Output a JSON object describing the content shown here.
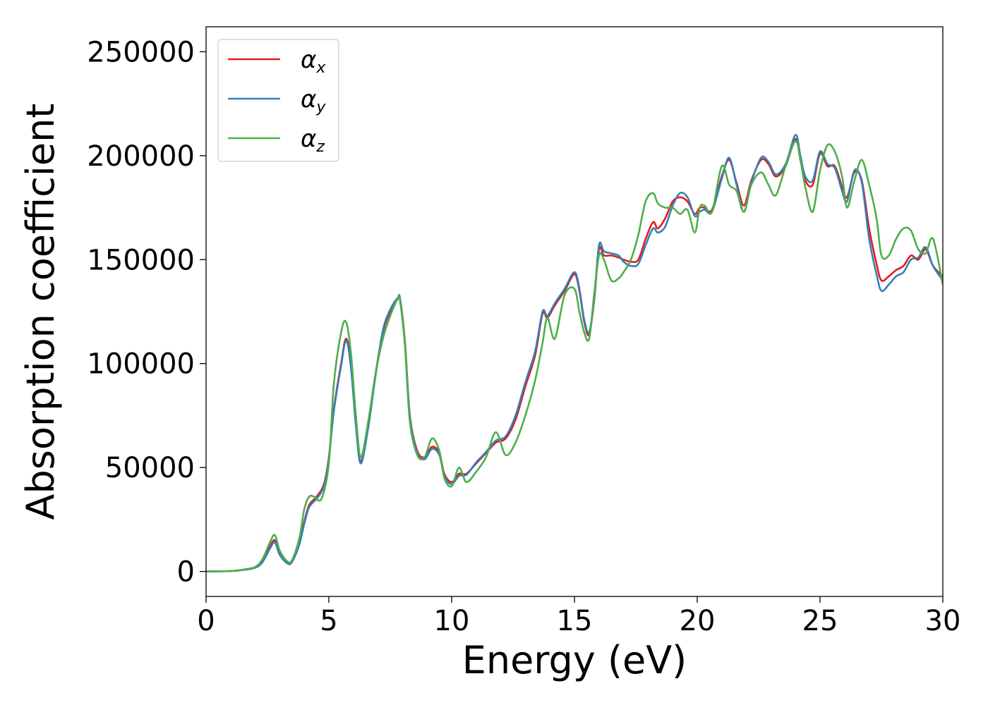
{
  "chart_data": {
    "type": "line",
    "xlabel": "Energy (eV)",
    "ylabel": "Absorption coefficient",
    "xlim": [
      0,
      30
    ],
    "ylim": [
      -12000,
      262000
    ],
    "xticks": [
      0,
      5,
      10,
      15,
      20,
      25,
      30
    ],
    "xtick_labels": [
      "0",
      "5",
      "10",
      "15",
      "20",
      "25",
      "30"
    ],
    "yticks": [
      0,
      50000,
      100000,
      150000,
      200000,
      250000
    ],
    "ytick_labels": [
      "0",
      "50000",
      "100000",
      "150000",
      "200000",
      "250000"
    ],
    "grid": false,
    "legend_position": "top-left",
    "series": [
      {
        "name": "αx",
        "name_base": "α",
        "name_sub": "x",
        "color": "#e41a1c",
        "x": [
          0,
          1,
          1.5,
          2,
          2.3,
          2.6,
          2.8,
          3.0,
          3.3,
          3.5,
          3.8,
          4.0,
          4.2,
          4.5,
          4.8,
          5.0,
          5.2,
          5.5,
          5.7,
          5.9,
          6.1,
          6.3,
          6.6,
          6.9,
          7.2,
          7.5,
          7.8,
          7.9,
          8.1,
          8.3,
          8.6,
          8.9,
          9.2,
          9.5,
          9.7,
          10.0,
          10.3,
          10.6,
          11.0,
          11.4,
          11.8,
          12.2,
          12.6,
          13.0,
          13.4,
          13.7,
          13.9,
          14.2,
          14.6,
          15.0,
          15.2,
          15.4,
          15.6,
          15.8,
          16.0,
          16.2,
          16.5,
          16.8,
          17.0,
          17.3,
          17.6,
          17.9,
          18.2,
          18.4,
          18.7,
          19.0,
          19.3,
          19.6,
          19.9,
          20.1,
          20.3,
          20.6,
          21.0,
          21.3,
          21.6,
          21.9,
          22.2,
          22.6,
          22.9,
          23.2,
          23.6,
          24.0,
          24.2,
          24.4,
          24.7,
          25.0,
          25.3,
          25.6,
          25.9,
          26.1,
          26.4,
          26.7,
          27.0,
          27.3,
          27.5,
          27.8,
          28.1,
          28.4,
          28.7,
          29.0,
          29.3,
          29.6,
          30.0
        ],
        "values": [
          0,
          200,
          800,
          2000,
          5000,
          12000,
          15000,
          9000,
          4500,
          5000,
          14000,
          24000,
          32000,
          36000,
          42000,
          55000,
          78000,
          100000,
          112000,
          100000,
          72000,
          53000,
          70000,
          95000,
          115000,
          125000,
          131000,
          131000,
          110000,
          75000,
          58000,
          55000,
          60000,
          57000,
          47000,
          43000,
          47000,
          47000,
          52000,
          57000,
          62000,
          64000,
          73000,
          89000,
          104000,
          124000,
          122000,
          128000,
          135000,
          143000,
          135000,
          120000,
          114000,
          130000,
          155000,
          152000,
          152000,
          151000,
          150000,
          149000,
          150000,
          160000,
          168000,
          165000,
          170000,
          178000,
          180000,
          178000,
          172000,
          175000,
          175000,
          174000,
          190000,
          198000,
          187000,
          176000,
          188000,
          198000,
          196000,
          190000,
          195000,
          208000,
          198000,
          188000,
          186000,
          201000,
          195000,
          195000,
          185000,
          180000,
          192000,
          188000,
          165000,
          148000,
          140000,
          142000,
          145000,
          147000,
          152000,
          150000,
          155000,
          147000,
          142000
        ]
      },
      {
        "name": "αy",
        "name_base": "α",
        "name_sub": "y",
        "color": "#377eb8",
        "x": [
          0,
          1,
          1.5,
          2,
          2.3,
          2.6,
          2.8,
          3.0,
          3.3,
          3.5,
          3.8,
          4.0,
          4.2,
          4.5,
          4.8,
          5.0,
          5.2,
          5.5,
          5.7,
          5.9,
          6.1,
          6.3,
          6.6,
          6.9,
          7.2,
          7.5,
          7.8,
          7.9,
          8.1,
          8.3,
          8.6,
          8.9,
          9.2,
          9.5,
          9.7,
          10.0,
          10.3,
          10.6,
          11.0,
          11.4,
          11.8,
          12.2,
          12.6,
          13.0,
          13.4,
          13.7,
          13.9,
          14.2,
          14.6,
          15.0,
          15.2,
          15.4,
          15.6,
          15.8,
          16.0,
          16.2,
          16.5,
          16.8,
          17.0,
          17.3,
          17.6,
          17.9,
          18.2,
          18.4,
          18.7,
          19.0,
          19.3,
          19.6,
          19.9,
          20.1,
          20.3,
          20.6,
          21.0,
          21.3,
          21.6,
          21.9,
          22.2,
          22.6,
          22.9,
          23.2,
          23.6,
          24.0,
          24.2,
          24.4,
          24.7,
          25.0,
          25.3,
          25.6,
          25.9,
          26.1,
          26.4,
          26.7,
          27.0,
          27.3,
          27.5,
          27.8,
          28.1,
          28.4,
          28.7,
          29.0,
          29.3,
          29.6,
          30.0
        ],
        "values": [
          0,
          200,
          700,
          1800,
          4500,
          11000,
          14000,
          8000,
          4000,
          4500,
          13000,
          23000,
          31000,
          35000,
          41000,
          54000,
          77000,
          99000,
          111000,
          98000,
          70000,
          52000,
          69000,
          94000,
          116000,
          126000,
          131500,
          131000,
          109000,
          74000,
          57000,
          54000,
          59000,
          56000,
          46000,
          42000,
          46000,
          46500,
          52500,
          57500,
          63000,
          65000,
          75000,
          91000,
          106000,
          125000,
          123000,
          129000,
          136000,
          144000,
          136000,
          121000,
          115000,
          131000,
          157000,
          154000,
          153000,
          152000,
          149000,
          147000,
          148000,
          157000,
          165000,
          163000,
          166000,
          176000,
          182000,
          180000,
          171000,
          173000,
          174000,
          173000,
          189000,
          199000,
          186000,
          173000,
          187000,
          199000,
          197000,
          191000,
          196000,
          210000,
          200000,
          190000,
          188000,
          202000,
          196000,
          194000,
          183000,
          178000,
          193000,
          187000,
          160000,
          143000,
          135000,
          138000,
          142000,
          144000,
          150000,
          151000,
          156000,
          147000,
          140000
        ]
      },
      {
        "name": "αz",
        "name_base": "α",
        "name_sub": "z",
        "color": "#4daf4a",
        "x": [
          0,
          1,
          1.5,
          2,
          2.3,
          2.6,
          2.8,
          3.0,
          3.3,
          3.5,
          3.8,
          4.0,
          4.2,
          4.4,
          4.7,
          5.0,
          5.2,
          5.5,
          5.7,
          5.9,
          6.1,
          6.3,
          6.6,
          6.9,
          7.2,
          7.5,
          7.8,
          7.9,
          8.1,
          8.3,
          8.6,
          8.9,
          9.2,
          9.5,
          9.7,
          10.0,
          10.3,
          10.6,
          11.0,
          11.4,
          11.8,
          12.2,
          12.6,
          13.0,
          13.4,
          13.7,
          13.9,
          14.2,
          14.6,
          15.0,
          15.2,
          15.4,
          15.6,
          15.8,
          16.0,
          16.2,
          16.5,
          16.8,
          17.0,
          17.3,
          17.6,
          17.9,
          18.2,
          18.4,
          18.7,
          19.0,
          19.3,
          19.6,
          19.9,
          20.1,
          20.3,
          20.6,
          21.0,
          21.3,
          21.6,
          21.9,
          22.2,
          22.6,
          22.9,
          23.2,
          23.6,
          24.0,
          24.2,
          24.4,
          24.7,
          25.0,
          25.3,
          25.6,
          25.9,
          26.1,
          26.4,
          26.7,
          27.0,
          27.3,
          27.5,
          27.8,
          28.1,
          28.4,
          28.7,
          29.0,
          29.3,
          29.6,
          30.0
        ],
        "values": [
          0,
          200,
          900,
          2200,
          6000,
          14000,
          17500,
          10000,
          5000,
          5500,
          16000,
          30000,
          36000,
          36000,
          35000,
          52000,
          90000,
          115000,
          120000,
          105000,
          75000,
          55000,
          72000,
          95000,
          112000,
          123000,
          131000,
          130000,
          108000,
          72000,
          56000,
          55000,
          64000,
          58000,
          45000,
          41000,
          50000,
          43000,
          48000,
          55000,
          67000,
          56000,
          62000,
          75000,
          92000,
          110000,
          122000,
          112000,
          133000,
          136000,
          125000,
          115000,
          112000,
          133000,
          152000,
          150000,
          140000,
          141000,
          144000,
          150000,
          162000,
          178000,
          182000,
          177000,
          175000,
          175000,
          172000,
          174000,
          163000,
          175000,
          176000,
          173000,
          195000,
          186000,
          183000,
          173000,
          186000,
          192000,
          186000,
          181000,
          195000,
          207000,
          198000,
          185000,
          173000,
          193000,
          205000,
          202000,
          190000,
          175000,
          188000,
          198000,
          186000,
          170000,
          152000,
          152000,
          160000,
          165000,
          164000,
          155000,
          153000,
          160000,
          138000
        ]
      }
    ]
  }
}
